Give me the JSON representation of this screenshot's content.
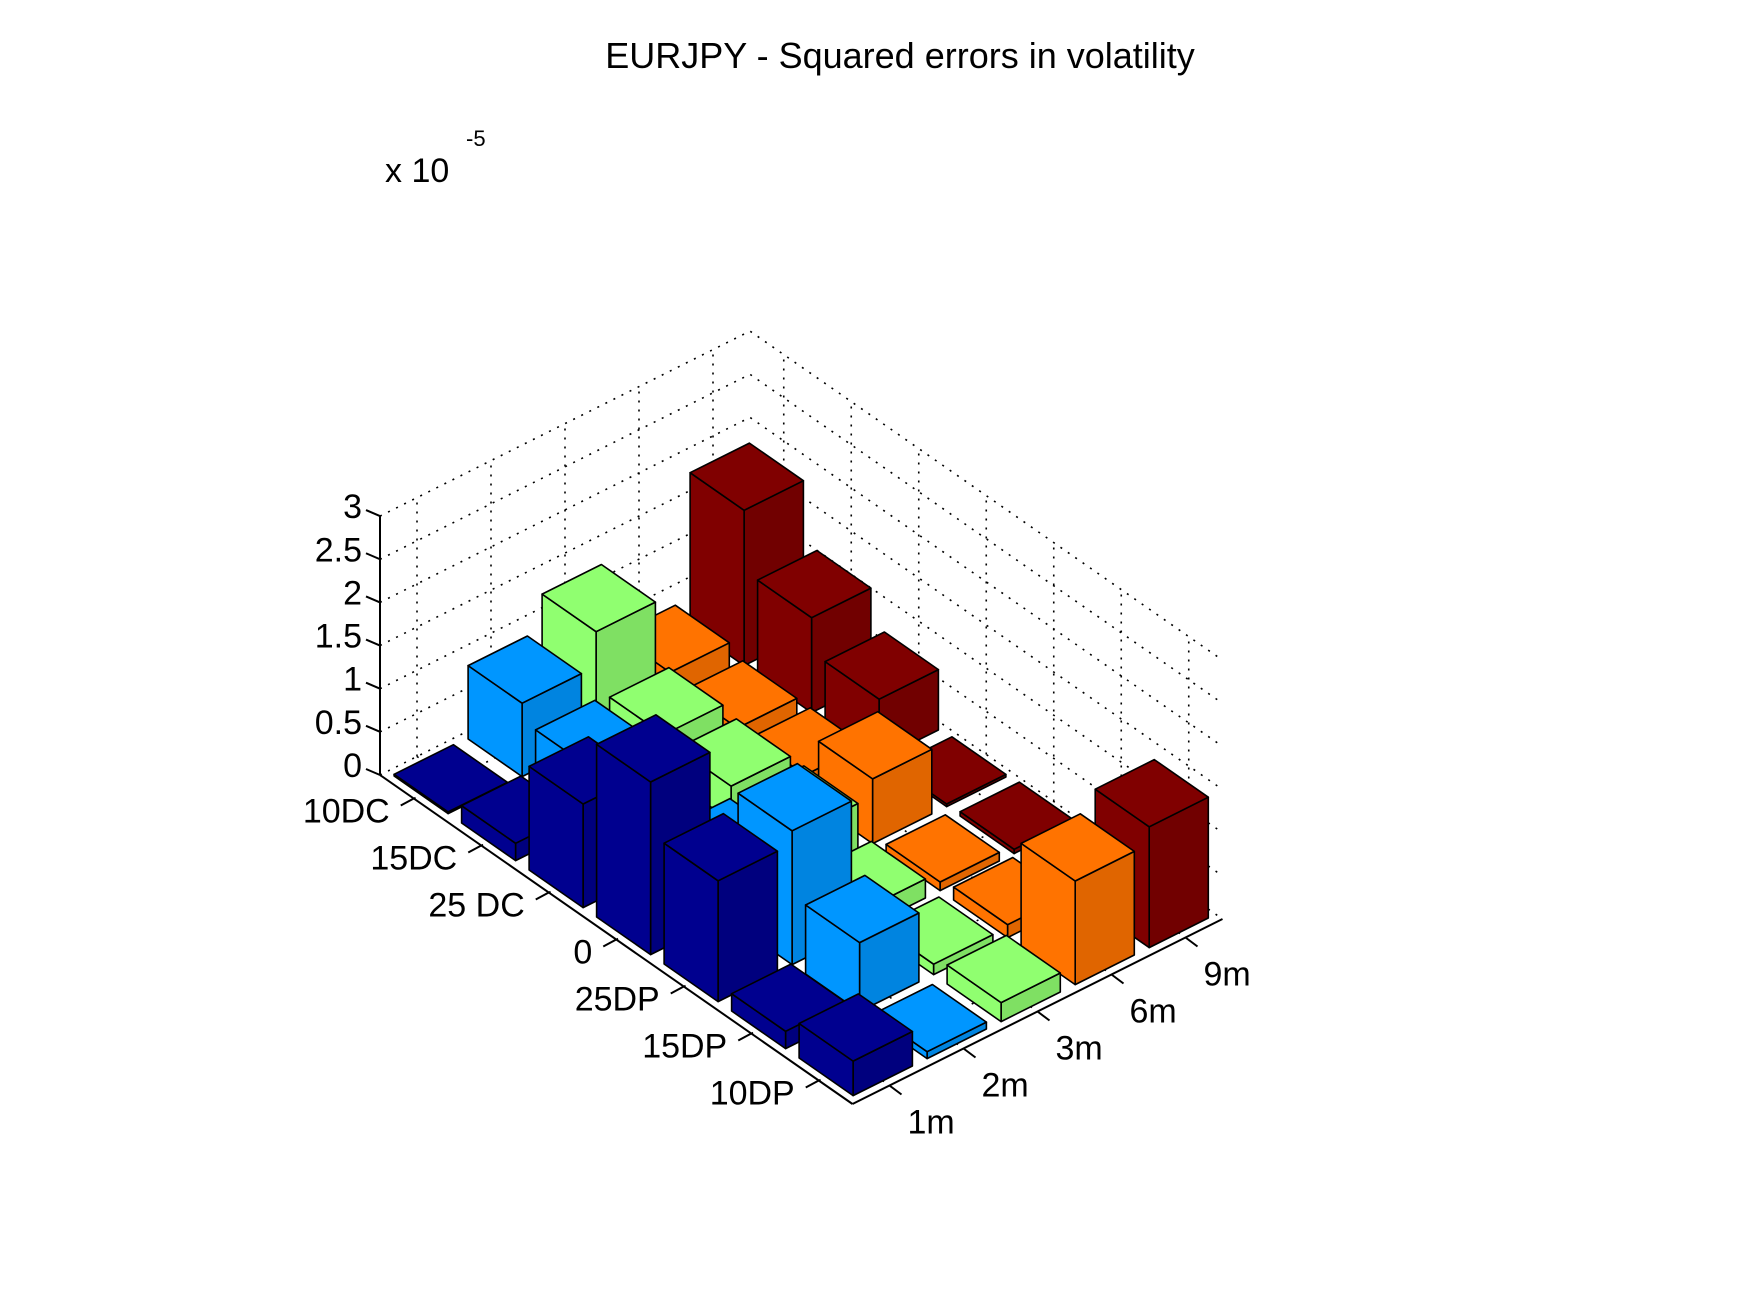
{
  "chart_data": {
    "type": "bar3d",
    "title": "EURJPY - Squared errors in volatility",
    "z_multiplier_label": "x 10",
    "z_multiplier_exponent": "-5",
    "z_ticks": [
      "0",
      "0.5",
      "1",
      "1.5",
      "2",
      "2.5",
      "3"
    ],
    "zlim": [
      0,
      3
    ],
    "strike_labels": [
      "10DC",
      "15DC",
      "25 DC",
      "0",
      "25DP",
      "15DP",
      "10DP"
    ],
    "maturity_labels": [
      "1m",
      "2m",
      "3m",
      "6m",
      "9m"
    ],
    "grid": true,
    "series": [
      {
        "maturity": "1m",
        "color": "#00008F",
        "values": [
          0.02,
          0.2,
          1.2,
          2.0,
          1.4,
          0.2,
          0.4
        ]
      },
      {
        "maturity": "2m",
        "color": "#0096FF",
        "values": [
          0.85,
          0.65,
          0.35,
          0.6,
          1.55,
          0.8,
          0.08
        ]
      },
      {
        "maturity": "3m",
        "color": "#90FF70",
        "values": [
          1.25,
          0.6,
          0.55,
          0.55,
          0.22,
          0.12,
          0.22
        ]
      },
      {
        "maturity": "6m",
        "color": "#FF7300",
        "values": [
          0.35,
          0.25,
          0.25,
          0.75,
          0.1,
          0.15,
          1.2
        ]
      },
      {
        "maturity": "9m",
        "color": "#800000",
        "values": [
          1.8,
          1.1,
          0.7,
          0.03,
          0.05,
          0.05,
          1.4
        ]
      }
    ]
  }
}
